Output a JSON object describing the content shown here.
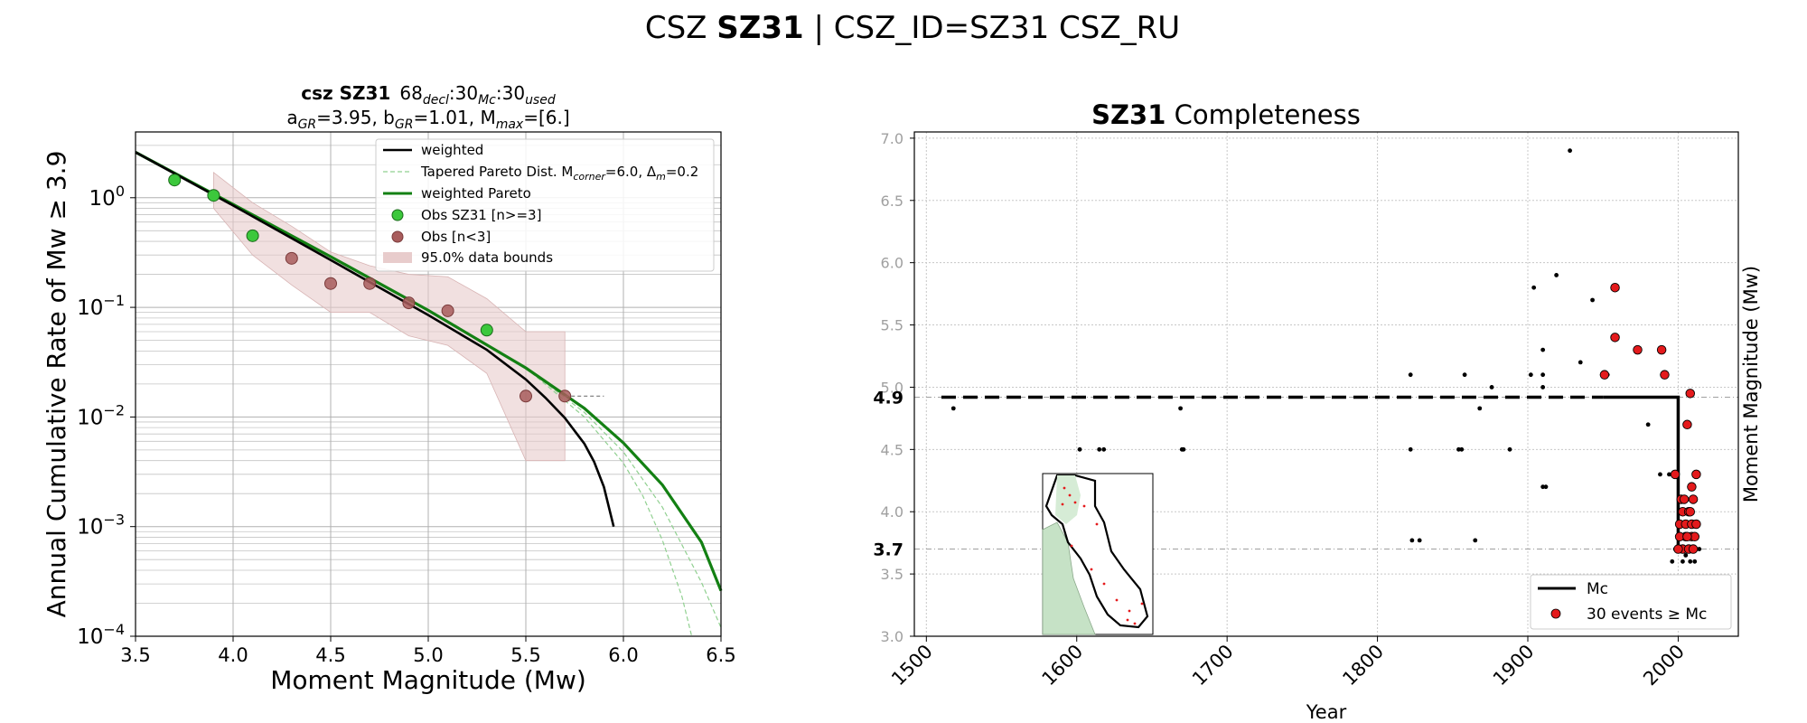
{
  "figure": {
    "title_prefix": "CSZ ",
    "title_bold": "SZ31",
    "title_suffix": " | CSZ_ID=SZ31 CSZ_RU"
  },
  "chart_data": [
    {
      "type": "line",
      "title_line1_bold": "csz SZ31",
      "title_line1_rest": "68",
      "title_line1_sub1": "decl",
      "title_line1_mid": ":30",
      "title_line1_sub2": "Mc",
      "title_line1_mid2": ":30",
      "title_line1_sub3": "used",
      "title_line2_a": "a",
      "title_line2_a_sub": "GR",
      "title_line2_a_val": "=3.95,  b",
      "title_line2_b_sub": "GR",
      "title_line2_b_val": "=1.01, M",
      "title_line2_m_sub": "max",
      "title_line2_m_val": "=[6.]",
      "xlabel": "Moment Magnitude (Mw)",
      "ylabel": "Annual Cumulative Rate of Mw ≥ 3.9",
      "xlim": [
        3.5,
        6.5
      ],
      "ylim_log10": [
        -4,
        0.6
      ],
      "yscale": "log",
      "grid": true,
      "legend_position": "top-right",
      "xticks": [
        "3.5",
        "4.0",
        "4.5",
        "5.0",
        "5.5",
        "6.0",
        "6.5"
      ],
      "yticks": [
        {
          "base": "10",
          "exp": "0",
          "value": 1
        },
        {
          "base": "10",
          "exp": "−1",
          "value": 0.1
        },
        {
          "base": "10",
          "exp": "−2",
          "value": 0.01
        },
        {
          "base": "10",
          "exp": "−3",
          "value": 0.001
        },
        {
          "base": "10",
          "exp": "−4",
          "value": 0.0001
        }
      ],
      "legend": {
        "weighted": "weighted",
        "tapered_prefix": "Tapered Pareto Dist. M",
        "tapered_sub1": "corner",
        "tapered_mid": "=6.0, Δ",
        "tapered_sub2": "m",
        "tapered_suffix": "=0.2",
        "weighted_pareto": "weighted Pareto",
        "obs_main": "Obs SZ31 [n>=3]",
        "obs_few": "Obs [n<3]",
        "bounds": "95.0% data bounds"
      },
      "colors": {
        "weighted": "#000000",
        "pareto": "#138013",
        "tapered": "#90d090",
        "obs_main": "#3cc83c",
        "obs_few": "#a85c5c",
        "bounds": "#e8cccc"
      },
      "series": [
        {
          "name": "weighted",
          "x": [
            3.5,
            4.0,
            4.5,
            5.0,
            5.3,
            5.5,
            5.6,
            5.7,
            5.8,
            5.85,
            5.9,
            5.95
          ],
          "y": [
            2.6,
            0.85,
            0.27,
            0.085,
            0.041,
            0.022,
            0.015,
            0.0098,
            0.0057,
            0.0039,
            0.0023,
            0.001
          ]
        },
        {
          "name": "weighted Pareto",
          "x": [
            3.5,
            4.0,
            4.5,
            5.0,
            5.5,
            5.8,
            6.0,
            6.2,
            6.4,
            6.5
          ],
          "y": [
            2.6,
            0.87,
            0.29,
            0.094,
            0.028,
            0.012,
            0.0058,
            0.0024,
            0.00072,
            0.00026
          ]
        },
        {
          "name": "tapered 1",
          "x": [
            5.5,
            5.8,
            6.0,
            6.2,
            6.4,
            6.5
          ],
          "y": [
            0.028,
            0.011,
            0.0048,
            0.0015,
            0.00031,
            0.00012
          ]
        },
        {
          "name": "tapered 2",
          "x": [
            5.5,
            5.8,
            6.0,
            6.1,
            6.2,
            6.3,
            6.35
          ],
          "y": [
            0.028,
            0.01,
            0.0038,
            0.0019,
            0.00075,
            0.00023,
            0.0001
          ]
        },
        {
          "name": "Obs SZ31 [n>=3]",
          "x": [
            3.7,
            3.9,
            4.1,
            5.3
          ],
          "y": [
            1.45,
            1.05,
            0.45,
            0.062
          ]
        },
        {
          "name": "Obs [n<3]",
          "x": [
            4.3,
            4.5,
            4.7,
            4.9,
            5.1,
            5.5,
            5.7
          ],
          "y": [
            0.28,
            0.165,
            0.165,
            0.11,
            0.093,
            0.0155,
            0.0155
          ]
        },
        {
          "name": "95.0% data bounds",
          "x": [
            3.9,
            4.1,
            4.3,
            4.5,
            4.7,
            4.9,
            5.1,
            5.3,
            5.5,
            5.7
          ],
          "upper": [
            1.7,
            0.9,
            0.55,
            0.32,
            0.24,
            0.2,
            0.19,
            0.12,
            0.06,
            0.06
          ],
          "lower": [
            0.8,
            0.3,
            0.16,
            0.09,
            0.09,
            0.055,
            0.045,
            0.025,
            0.004,
            0.004
          ]
        }
      ],
      "dash_marker": {
        "x": [
          5.7,
          5.9
        ],
        "y": 0.0155
      }
    },
    {
      "type": "scatter",
      "title_bold": "SZ31",
      "title_rest": " Completeness",
      "xlabel": "Year",
      "ylabel": "Moment Magnitude (Mw)",
      "xlim": [
        1492,
        2040
      ],
      "ylim": [
        3.0,
        7.05
      ],
      "grid": true,
      "legend_position": "bottom-right",
      "xticks": [
        "1500",
        "1600",
        "1700",
        "1800",
        "1900",
        "2000"
      ],
      "yticks": [
        "3.0",
        "3.5",
        "4.0",
        "4.5",
        "5.0",
        "5.5",
        "6.0",
        "6.5",
        "7.0"
      ],
      "mc_labels": [
        {
          "label": "4.9",
          "value": 4.92
        },
        {
          "label": "3.7",
          "value": 3.7
        }
      ],
      "mc_line": {
        "x": [
          1510,
          1950,
          2000,
          2000,
          2015
        ],
        "y": [
          4.92,
          4.92,
          4.92,
          3.7,
          3.7
        ]
      },
      "legend": {
        "mc": "Mc",
        "events": "30 events ≥ Mc"
      },
      "colors": {
        "red": "#e41a1c",
        "black": "#000000"
      },
      "black_events": [
        [
          1518,
          4.83
        ],
        [
          1602,
          4.5
        ],
        [
          1615,
          4.5
        ],
        [
          1618,
          4.5
        ],
        [
          1669,
          4.83
        ],
        [
          1670,
          4.5
        ],
        [
          1671,
          4.5
        ],
        [
          1822,
          5.1
        ],
        [
          1822,
          4.5
        ],
        [
          1823,
          3.77
        ],
        [
          1828,
          3.77
        ],
        [
          1854,
          4.5
        ],
        [
          1856,
          4.5
        ],
        [
          1858,
          5.1
        ],
        [
          1865,
          3.77
        ],
        [
          1868,
          4.83
        ],
        [
          1876,
          5.0
        ],
        [
          1888,
          4.5
        ],
        [
          1902,
          5.1
        ],
        [
          1904,
          5.8
        ],
        [
          1910,
          5.3
        ],
        [
          1910,
          5.1
        ],
        [
          1910,
          5.0
        ],
        [
          1910,
          4.2
        ],
        [
          1912,
          4.2
        ],
        [
          1919,
          5.9
        ],
        [
          1928,
          6.9
        ],
        [
          1935,
          5.2
        ],
        [
          1943,
          5.7
        ],
        [
          1950,
          5.1
        ],
        [
          1953,
          5.1
        ],
        [
          1980,
          4.7
        ],
        [
          1988,
          4.3
        ],
        [
          1994,
          4.3
        ],
        [
          1996,
          3.6
        ],
        [
          1998,
          3.7
        ],
        [
          2003,
          3.6
        ],
        [
          2005,
          3.65
        ],
        [
          2008,
          3.6
        ],
        [
          2011,
          3.6
        ],
        [
          2014,
          3.7
        ]
      ],
      "red_events": [
        [
          1951,
          5.1
        ],
        [
          1958,
          5.8
        ],
        [
          1958,
          5.4
        ],
        [
          1973,
          5.3
        ],
        [
          1989,
          5.3
        ],
        [
          1991,
          5.1
        ],
        [
          1998,
          4.3
        ],
        [
          2002,
          4.1
        ],
        [
          2006,
          4.7
        ],
        [
          2008,
          4.95
        ],
        [
          2009,
          4.2
        ],
        [
          2012,
          4.3
        ],
        [
          2001,
          3.9
        ],
        [
          2003,
          4.0
        ],
        [
          2005,
          3.8
        ],
        [
          2003,
          3.7
        ],
        [
          2007,
          3.7
        ],
        [
          2010,
          3.7
        ],
        [
          2007,
          4.0
        ],
        [
          2005,
          3.9
        ],
        [
          2009,
          3.9
        ],
        [
          2012,
          3.9
        ],
        [
          2001,
          3.8
        ],
        [
          2009,
          3.8
        ],
        [
          2011,
          3.8
        ],
        [
          2000,
          3.7
        ],
        [
          2004,
          4.1
        ],
        [
          2010,
          4.1
        ],
        [
          2006,
          3.8
        ],
        [
          2008,
          4.0
        ]
      ]
    }
  ]
}
